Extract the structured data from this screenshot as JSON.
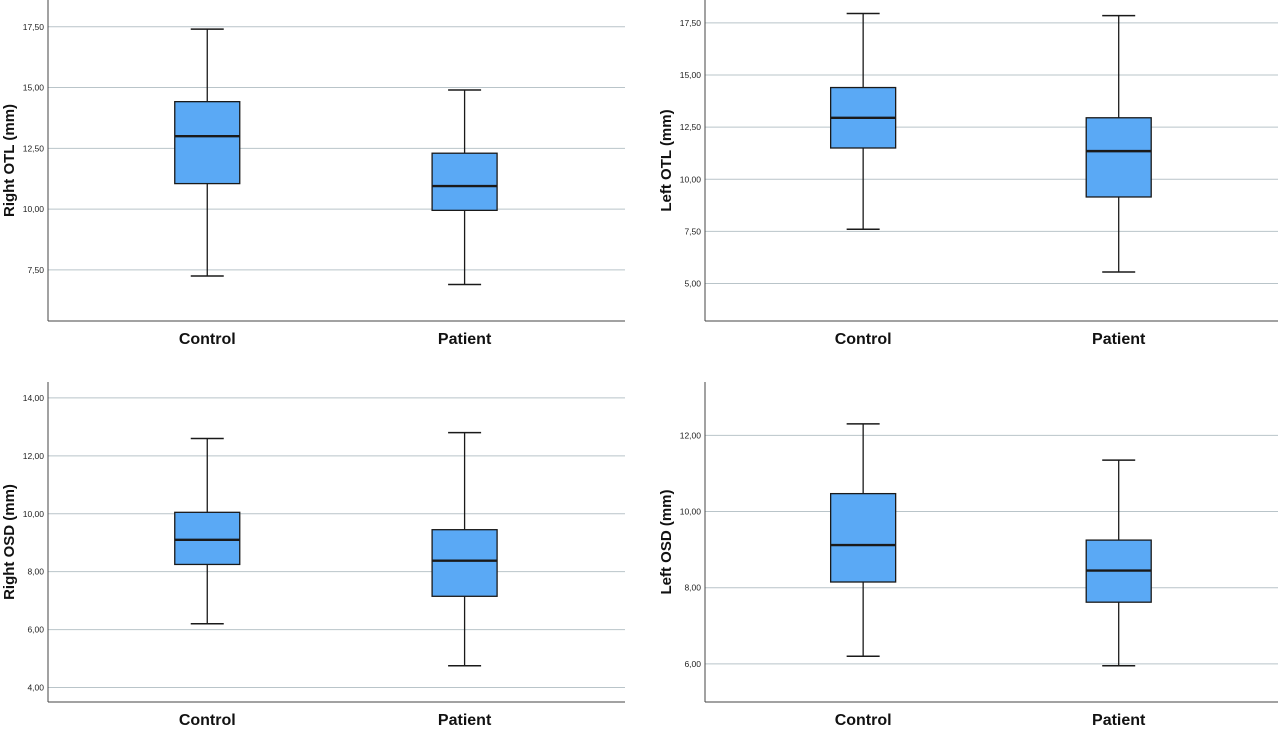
{
  "colors": {
    "box_fill": "#5aa9f5",
    "stroke": "#1a1a1a",
    "grid": "#b9c4c9",
    "axis": "#444444"
  },
  "chart_data": [
    {
      "type": "box",
      "ylabel": "Right OTL (mm)",
      "categories": [
        "Control",
        "Patient"
      ],
      "yticks": [
        "7,50",
        "10,00",
        "12,50",
        "15,00",
        "17,50"
      ],
      "ytick_values": [
        7.5,
        10.0,
        12.5,
        15.0,
        17.5
      ],
      "ylim": [
        5.4,
        18.6
      ],
      "grid": true,
      "boxes": [
        {
          "min": 7.25,
          "q1": 11.05,
          "median": 13.0,
          "q3": 14.42,
          "max": 17.4
        },
        {
          "min": 6.9,
          "q1": 9.95,
          "median": 10.95,
          "q3": 12.3,
          "max": 14.9
        }
      ]
    },
    {
      "type": "box",
      "ylabel": "Left OTL (mm)",
      "categories": [
        "Control",
        "Patient"
      ],
      "yticks": [
        "5,00",
        "7,50",
        "10,00",
        "12,50",
        "15,00",
        "17,50"
      ],
      "ytick_values": [
        5.0,
        7.5,
        10.0,
        12.5,
        15.0,
        17.5
      ],
      "ylim": [
        3.2,
        18.6
      ],
      "grid": true,
      "boxes": [
        {
          "min": 7.6,
          "q1": 11.5,
          "median": 12.95,
          "q3": 14.4,
          "max": 17.95
        },
        {
          "min": 5.55,
          "q1": 9.15,
          "median": 11.35,
          "q3": 12.95,
          "max": 17.85
        }
      ]
    },
    {
      "type": "box",
      "ylabel": "Right OSD (mm)",
      "categories": [
        "Control",
        "Patient"
      ],
      "yticks": [
        "4,00",
        "6,00",
        "8,00",
        "10,00",
        "12,00",
        "14,00"
      ],
      "ytick_values": [
        4.0,
        6.0,
        8.0,
        10.0,
        12.0,
        14.0
      ],
      "ylim": [
        3.5,
        14.55
      ],
      "grid": true,
      "boxes": [
        {
          "min": 6.2,
          "q1": 8.25,
          "median": 9.1,
          "q3": 10.05,
          "max": 12.6
        },
        {
          "min": 4.75,
          "q1": 7.15,
          "median": 8.38,
          "q3": 9.45,
          "max": 12.8
        }
      ]
    },
    {
      "type": "box",
      "ylabel": "Left OSD (mm)",
      "categories": [
        "Control",
        "Patient"
      ],
      "yticks": [
        "6,00",
        "8,00",
        "10,00",
        "12,00"
      ],
      "ytick_values": [
        6.0,
        8.0,
        10.0,
        12.0
      ],
      "ylim": [
        5.0,
        13.4
      ],
      "grid": true,
      "boxes": [
        {
          "min": 6.2,
          "q1": 8.15,
          "median": 9.12,
          "q3": 10.47,
          "max": 12.3
        },
        {
          "min": 5.95,
          "q1": 7.62,
          "median": 8.45,
          "q3": 9.25,
          "max": 11.35
        }
      ]
    }
  ]
}
